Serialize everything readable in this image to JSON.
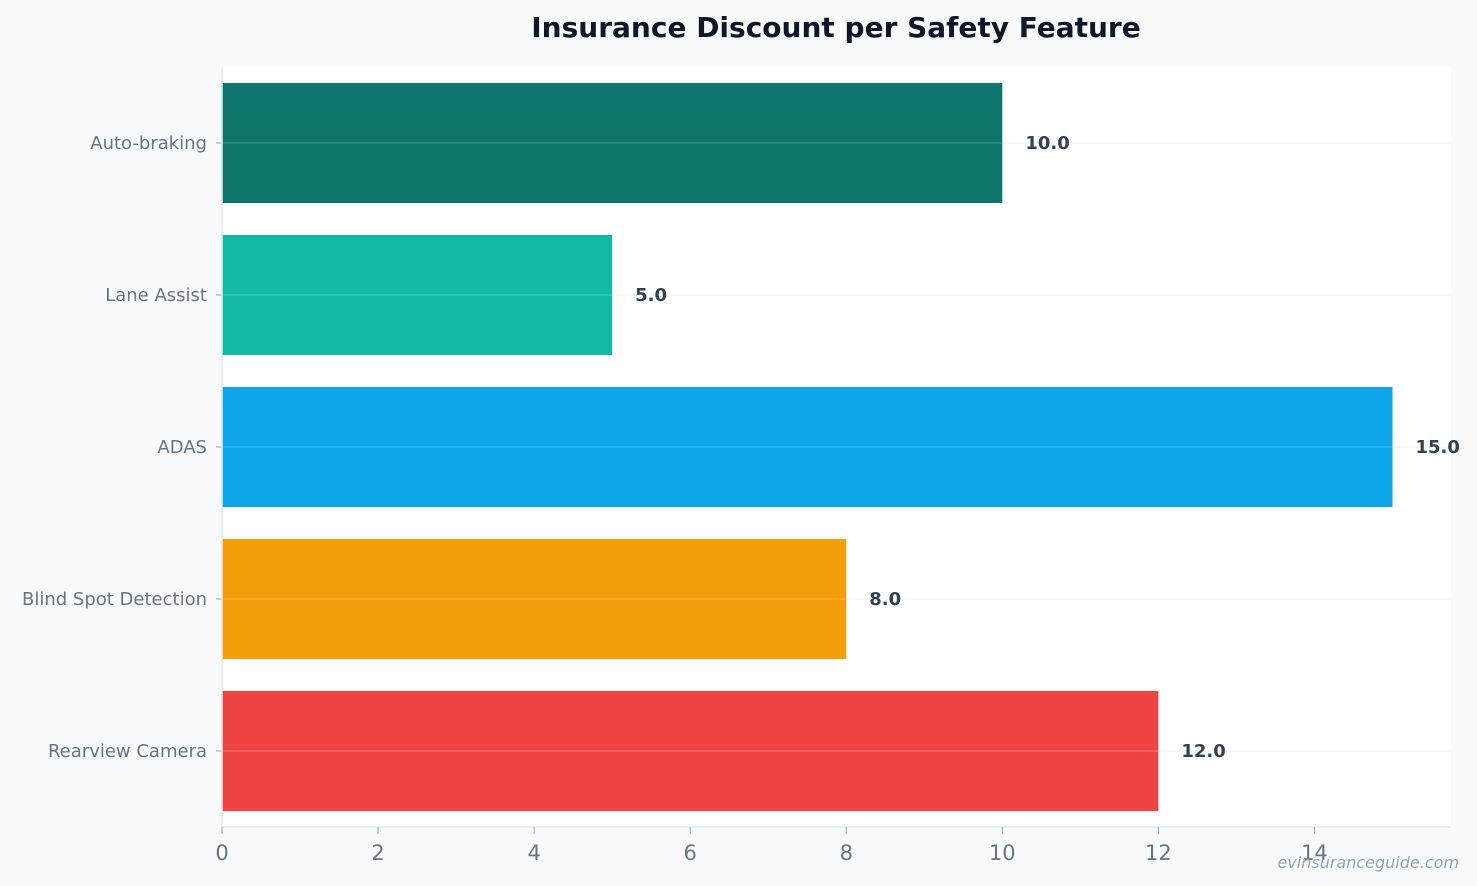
{
  "chart_data": {
    "type": "bar",
    "orientation": "horizontal",
    "title": "Insurance Discount per Safety Feature",
    "xlabel": "",
    "ylabel": "",
    "categories": [
      "Auto-braking",
      "Lane Assist",
      "ADAS",
      "Blind Spot Detection",
      "Rearview Camera"
    ],
    "values": [
      10.0,
      5.0,
      15.0,
      8.0,
      12.0
    ],
    "value_labels": [
      "10.0",
      "5.0",
      "15.0",
      "8.0",
      "12.0"
    ],
    "colors": [
      "#0f766e",
      "#14b8a6",
      "#0ea5e9",
      "#f59e0b",
      "#ef4444"
    ],
    "xlim": [
      0,
      15.75
    ],
    "xticks": [
      0,
      2,
      4,
      6,
      8,
      10,
      12,
      14
    ],
    "xtick_labels": [
      "0",
      "2",
      "4",
      "6",
      "8",
      "10",
      "12",
      "14"
    ],
    "grid": true,
    "legend": "none"
  },
  "watermark": "evinsuranceguide.com"
}
